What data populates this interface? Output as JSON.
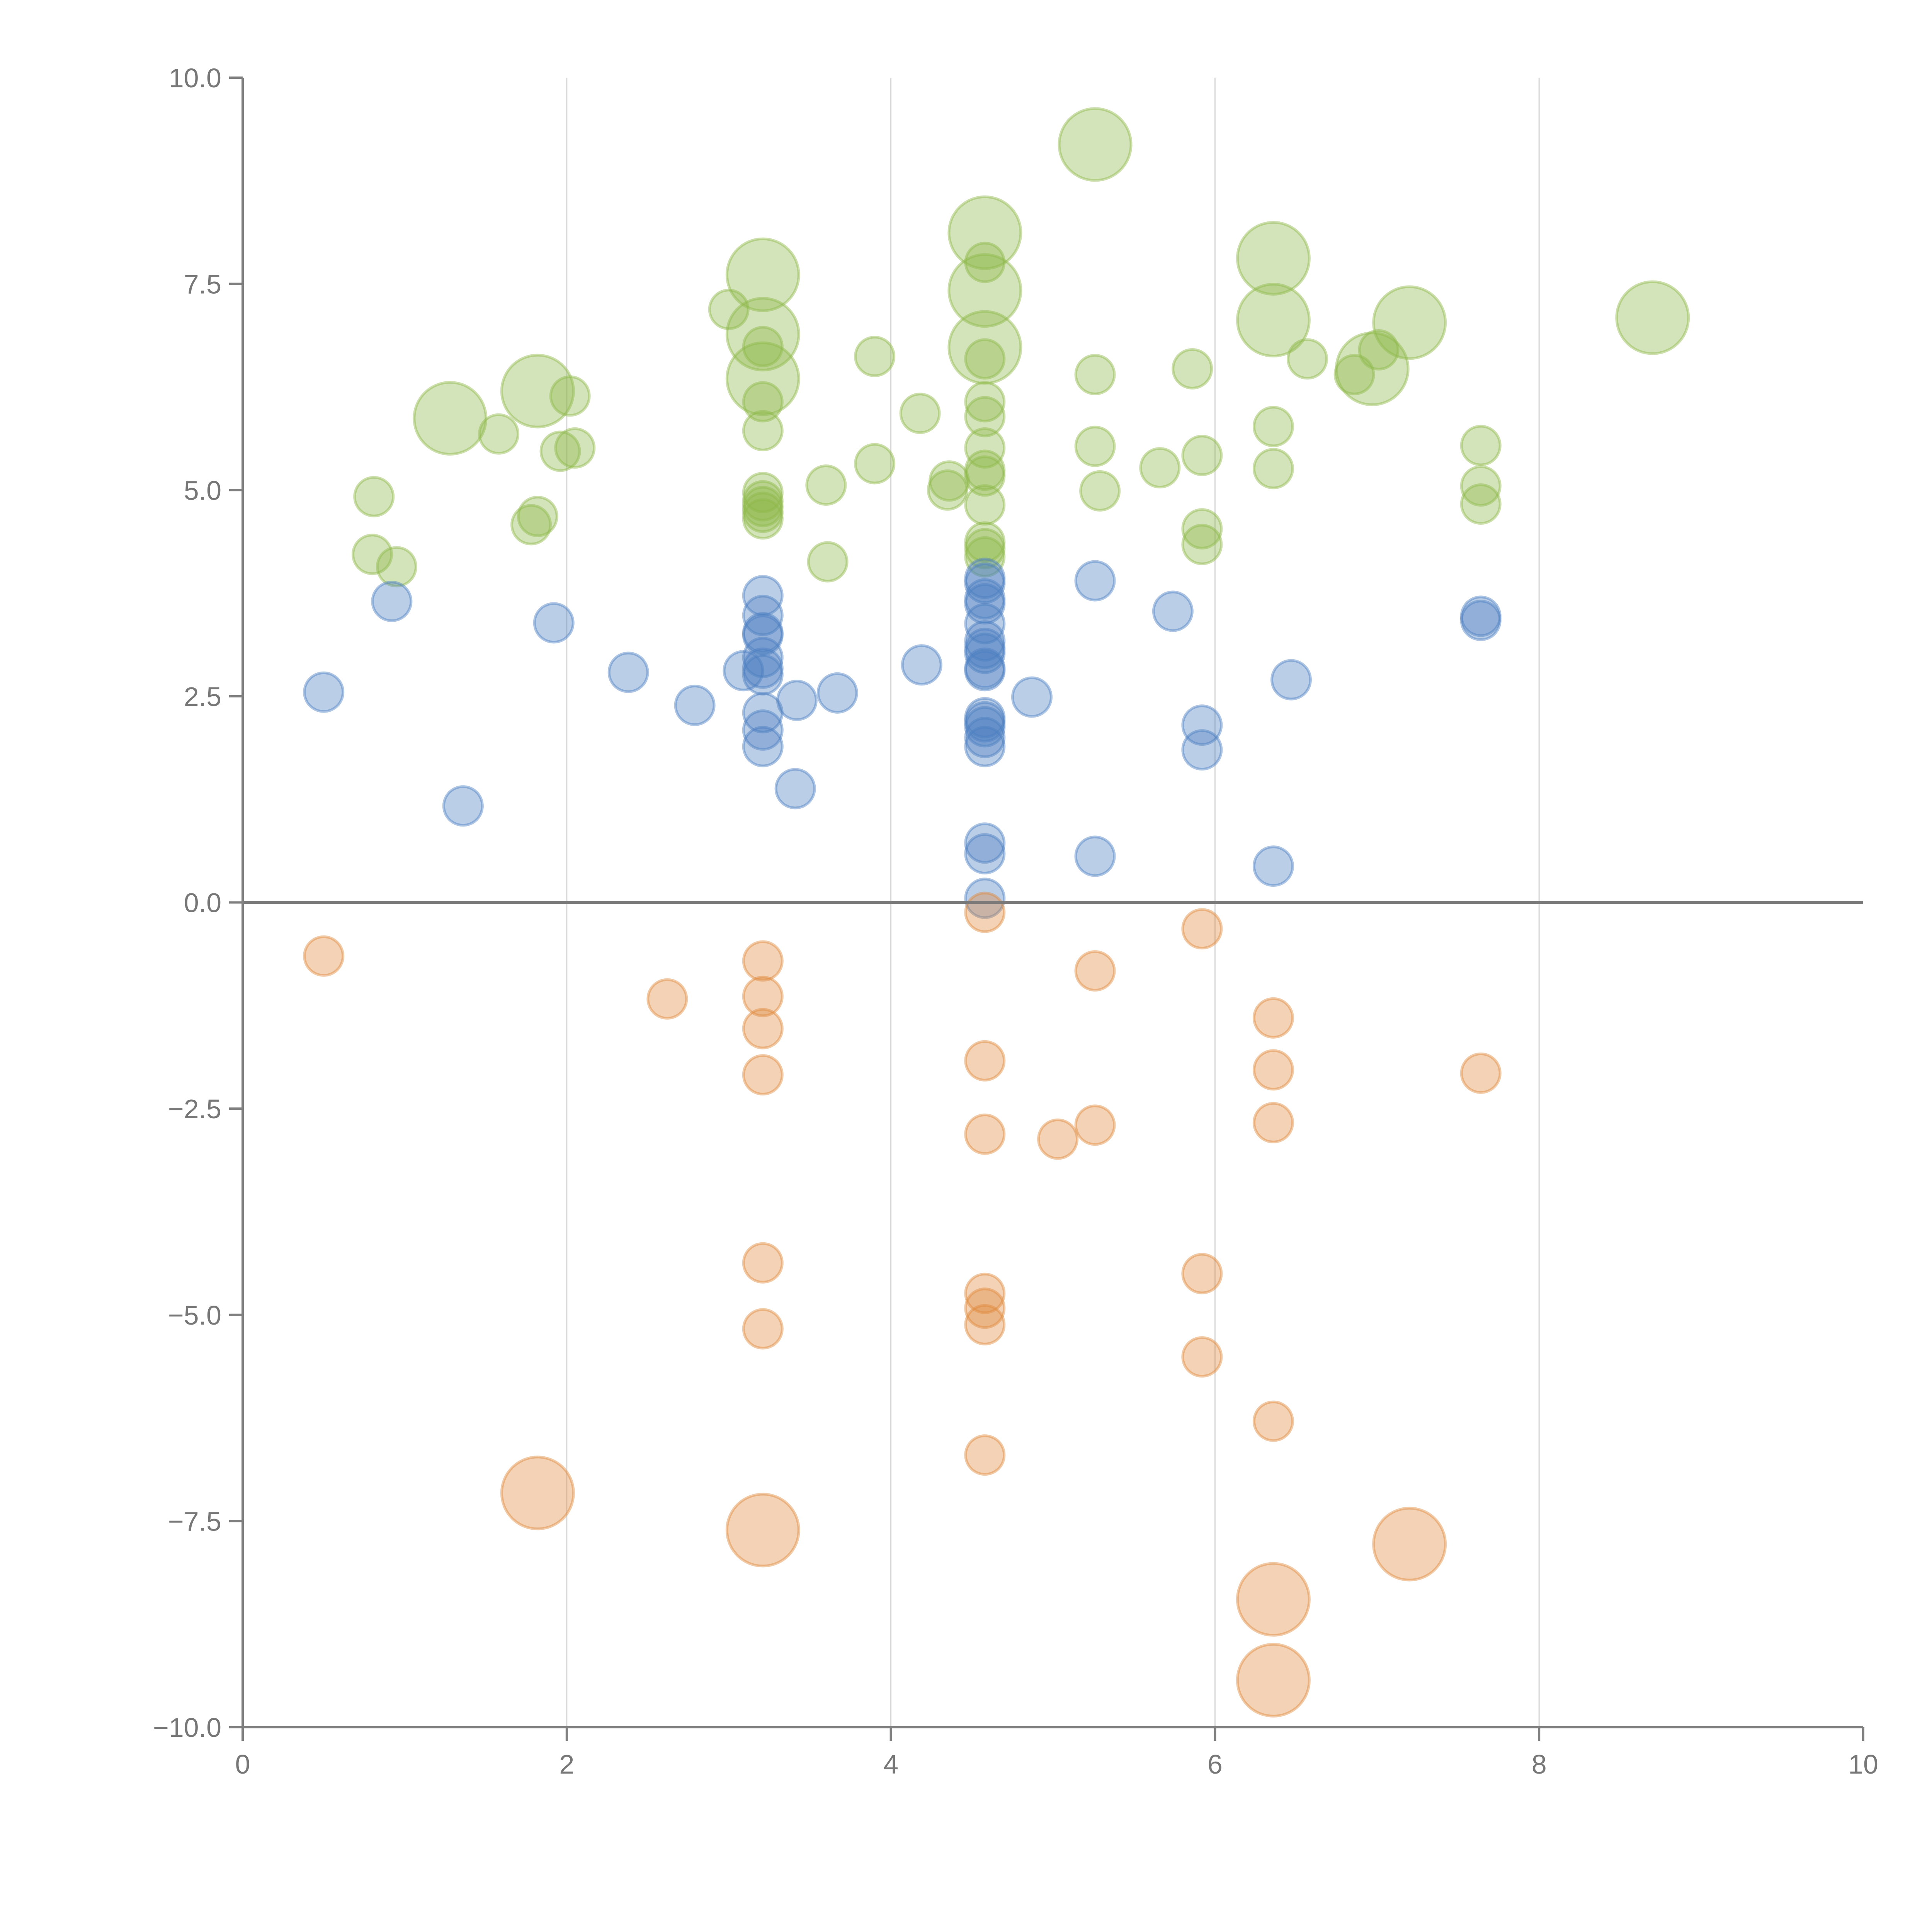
{
  "chart_data": {
    "type": "scatter",
    "title": "",
    "xlabel": "",
    "ylabel": "",
    "xlim": [
      0,
      10
    ],
    "ylim": [
      -10,
      10
    ],
    "x_ticks": [
      "0",
      "2",
      "4",
      "6",
      "8",
      "10"
    ],
    "y_ticks": [
      "10.0",
      "7.5",
      "5.0",
      "2.5",
      "0.0",
      "−2.5",
      "−5.0",
      "−7.5",
      "−10.0"
    ],
    "grid": "vertical",
    "legend": "none",
    "series": [
      {
        "name": "green",
        "color": "#8fb849",
        "points": [
          [
            5.26,
            9.19,
            2
          ],
          [
            4.58,
            8.12,
            2
          ],
          [
            4.58,
            7.76,
            1
          ],
          [
            4.58,
            7.42,
            2
          ],
          [
            4.58,
            6.73,
            2
          ],
          [
            6.36,
            7.81,
            2
          ],
          [
            6.36,
            7.06,
            2
          ],
          [
            7.2,
            7.03,
            2
          ],
          [
            8.7,
            7.09,
            2
          ],
          [
            6.97,
            6.47,
            2
          ],
          [
            7.01,
            6.7,
            1
          ],
          [
            6.86,
            6.4,
            1
          ],
          [
            6.57,
            6.59,
            1
          ],
          [
            3.21,
            7.61,
            2
          ],
          [
            3.21,
            6.89,
            2
          ],
          [
            3.21,
            6.35,
            2
          ],
          [
            3.0,
            7.19,
            1
          ],
          [
            3.21,
            6.74,
            1
          ],
          [
            3.21,
            6.07,
            1
          ],
          [
            3.21,
            5.72,
            1
          ],
          [
            3.21,
            4.97,
            1
          ],
          [
            3.21,
            4.87,
            1
          ],
          [
            3.21,
            4.8,
            1
          ],
          [
            3.21,
            4.73,
            1
          ],
          [
            3.21,
            4.65,
            1
          ],
          [
            1.28,
            5.87,
            2
          ],
          [
            1.82,
            6.2,
            2
          ],
          [
            1.58,
            5.68,
            1
          ],
          [
            2.02,
            6.14,
            1
          ],
          [
            1.96,
            5.47,
            1
          ],
          [
            2.05,
            5.51,
            1
          ],
          [
            0.81,
            4.92,
            1
          ],
          [
            0.8,
            4.22,
            1
          ],
          [
            0.95,
            4.07,
            1
          ],
          [
            1.82,
            4.68,
            1
          ],
          [
            1.78,
            4.58,
            1
          ],
          [
            3.9,
            6.62,
            1
          ],
          [
            4.18,
            5.93,
            1
          ],
          [
            3.9,
            5.32,
            1
          ],
          [
            3.6,
            5.06,
            1
          ],
          [
            3.61,
            4.13,
            1
          ],
          [
            4.36,
            5.11,
            1
          ],
          [
            4.35,
            5.0,
            1
          ],
          [
            4.58,
            6.59,
            1
          ],
          [
            4.58,
            6.07,
            1
          ],
          [
            4.58,
            5.89,
            1
          ],
          [
            4.58,
            5.51,
            1
          ],
          [
            4.58,
            5.17,
            1
          ],
          [
            4.58,
            4.82,
            1
          ],
          [
            4.58,
            4.37,
            1
          ],
          [
            4.58,
            4.19,
            1
          ],
          [
            4.58,
            4.29,
            1
          ],
          [
            4.58,
            5.24,
            1
          ],
          [
            5.26,
            6.4,
            1
          ],
          [
            5.26,
            5.53,
            1
          ],
          [
            5.29,
            4.99,
            1
          ],
          [
            5.66,
            5.27,
            1
          ],
          [
            5.86,
            6.47,
            1
          ],
          [
            5.92,
            5.42,
            1
          ],
          [
            5.92,
            4.53,
            1
          ],
          [
            5.92,
            4.34,
            1
          ],
          [
            6.36,
            5.77,
            1
          ],
          [
            6.36,
            5.26,
            1
          ],
          [
            7.64,
            5.54,
            1
          ],
          [
            7.64,
            5.05,
            1
          ],
          [
            7.64,
            4.83,
            1
          ]
        ]
      },
      {
        "name": "blue",
        "color": "#4c7fc0",
        "points": [
          [
            0.5,
            2.55,
            1
          ],
          [
            0.92,
            3.65,
            1
          ],
          [
            1.36,
            1.17,
            1
          ],
          [
            1.92,
            3.39,
            1
          ],
          [
            2.38,
            2.79,
            1
          ],
          [
            2.79,
            2.39,
            1
          ],
          [
            3.09,
            2.81,
            1
          ],
          [
            3.21,
            3.72,
            1
          ],
          [
            3.21,
            3.48,
            1
          ],
          [
            3.21,
            3.27,
            1
          ],
          [
            3.21,
            3.24,
            1
          ],
          [
            3.21,
            2.97,
            1
          ],
          [
            3.21,
            2.76,
            1
          ],
          [
            3.21,
            2.3,
            1
          ],
          [
            3.21,
            2.09,
            1
          ],
          [
            3.21,
            1.89,
            1
          ],
          [
            3.21,
            2.84,
            1
          ],
          [
            3.42,
            2.45,
            1
          ],
          [
            3.41,
            1.38,
            1
          ],
          [
            3.67,
            2.54,
            1
          ],
          [
            4.19,
            2.88,
            1
          ],
          [
            4.87,
            2.49,
            1
          ],
          [
            4.58,
            3.93,
            1
          ],
          [
            4.58,
            3.68,
            1
          ],
          [
            4.58,
            3.38,
            1
          ],
          [
            4.58,
            3.17,
            1
          ],
          [
            4.58,
            3.02,
            1
          ],
          [
            4.58,
            2.81,
            1
          ],
          [
            4.58,
            2.24,
            1
          ],
          [
            4.58,
            2.13,
            1
          ],
          [
            4.58,
            2.0,
            1
          ],
          [
            4.58,
            1.89,
            1
          ],
          [
            4.58,
            0.72,
            1
          ],
          [
            4.58,
            0.59,
            1
          ],
          [
            4.58,
            0.05,
            1
          ],
          [
            4.58,
            3.87,
            1
          ],
          [
            4.58,
            3.62,
            1
          ],
          [
            4.58,
            3.08,
            1
          ],
          [
            4.58,
            2.84,
            1
          ],
          [
            4.58,
            2.19,
            1
          ],
          [
            5.26,
            3.9,
            1
          ],
          [
            5.26,
            0.56,
            1
          ],
          [
            5.74,
            3.53,
            1
          ],
          [
            5.92,
            2.15,
            1
          ],
          [
            5.92,
            1.85,
            1
          ],
          [
            6.47,
            2.7,
            1
          ],
          [
            6.36,
            0.44,
            1
          ],
          [
            7.64,
            3.47,
            1
          ],
          [
            7.64,
            3.42,
            1
          ]
        ]
      },
      {
        "name": "orange",
        "color": "#e08a3c",
        "points": [
          [
            0.5,
            -0.65,
            1
          ],
          [
            2.62,
            -1.17,
            1
          ],
          [
            3.21,
            -0.71,
            1
          ],
          [
            3.21,
            -1.14,
            1
          ],
          [
            3.21,
            -1.53,
            1
          ],
          [
            3.21,
            -2.09,
            1
          ],
          [
            3.21,
            -4.37,
            1
          ],
          [
            3.21,
            -5.17,
            1
          ],
          [
            3.21,
            -7.61,
            2
          ],
          [
            1.82,
            -7.16,
            2
          ],
          [
            4.58,
            -0.12,
            1
          ],
          [
            4.58,
            -1.92,
            1
          ],
          [
            4.58,
            -2.81,
            1
          ],
          [
            4.58,
            -4.74,
            1
          ],
          [
            4.58,
            -4.92,
            1
          ],
          [
            4.58,
            -5.12,
            1
          ],
          [
            4.58,
            -6.7,
            1
          ],
          [
            5.03,
            -2.87,
            1
          ],
          [
            5.26,
            -0.83,
            1
          ],
          [
            5.26,
            -2.7,
            1
          ],
          [
            5.92,
            -0.32,
            1
          ],
          [
            5.92,
            -4.5,
            1
          ],
          [
            5.92,
            -5.51,
            1
          ],
          [
            6.36,
            -1.4,
            1
          ],
          [
            6.36,
            -2.03,
            1
          ],
          [
            6.36,
            -2.67,
            1
          ],
          [
            6.36,
            -6.29,
            1
          ],
          [
            6.36,
            -8.45,
            2
          ],
          [
            6.36,
            -9.43,
            2
          ],
          [
            7.2,
            -7.78,
            2
          ],
          [
            7.64,
            -2.07,
            1
          ]
        ]
      }
    ]
  }
}
